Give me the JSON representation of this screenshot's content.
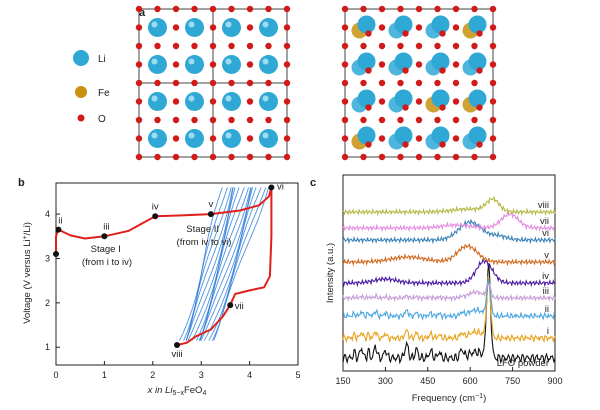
{
  "figure": {
    "panel_a_label": "a",
    "panel_b_label": "b",
    "panel_c_label": "c",
    "legend": [
      {
        "label": "Li",
        "color": "#2fa8d6"
      },
      {
        "label": "Fe",
        "color": "#c8920e"
      },
      {
        "label": "O",
        "color": "#d11a1a"
      }
    ]
  },
  "chart_data": [
    {
      "type": "line",
      "panel": "b",
      "xlabel_parts": [
        "x in Li",
        "5−x",
        "FeO",
        "4"
      ],
      "ylabel_parts": [
        "Voltage (V versus Li",
        "+",
        "/Li)"
      ],
      "xlim": [
        0,
        5
      ],
      "ylim": [
        0.6,
        4.7
      ],
      "x_ticks": [
        "0",
        "1",
        "2",
        "3",
        "4",
        "5"
      ],
      "y_ticks": [
        "1",
        "2",
        "3",
        "4"
      ],
      "points": [
        {
          "label": "i",
          "x": 0.0,
          "y": 3.1
        },
        {
          "label": "ii",
          "x": 0.05,
          "y": 3.65
        },
        {
          "label": "iii",
          "x": 1.0,
          "y": 3.5
        },
        {
          "label": "iv",
          "x": 2.05,
          "y": 3.95
        },
        {
          "label": "v",
          "x": 3.2,
          "y": 4.0
        },
        {
          "label": "vi",
          "x": 4.45,
          "y": 4.6
        },
        {
          "label": "vii",
          "x": 3.6,
          "y": 1.95
        },
        {
          "label": "viii",
          "x": 2.5,
          "y": 1.05
        }
      ],
      "annotations": [
        {
          "lines": [
            "Stage I",
            "(from i to iv)"
          ]
        },
        {
          "lines": [
            "Stage II",
            "(from iv to vi)"
          ]
        }
      ],
      "series": [
        {
          "color": "#e0201c",
          "x": [
            0.0,
            0.0,
            0.05,
            0.3,
            0.6,
            1.0,
            1.5,
            2.05,
            2.6,
            3.2,
            3.8,
            4.2,
            4.4,
            4.45,
            4.45,
            4.42,
            4.3,
            4.0,
            3.7,
            3.6,
            3.45,
            3.2,
            2.9,
            2.7,
            2.5
          ],
          "y": [
            3.1,
            3.5,
            3.65,
            3.52,
            3.45,
            3.5,
            3.62,
            3.95,
            3.97,
            4.0,
            4.08,
            4.2,
            4.4,
            4.6,
            3.5,
            2.6,
            2.35,
            2.28,
            2.2,
            1.95,
            1.7,
            1.4,
            1.25,
            1.1,
            1.05
          ]
        }
      ],
      "cycling_color": "#2f7fd8"
    },
    {
      "type": "line",
      "panel": "c",
      "xlabel_parts": [
        "Frequency (cm",
        "−1",
        ")"
      ],
      "ylabel": "Intensity (a.u.)",
      "xlim": [
        150,
        900
      ],
      "x_ticks": [
        "150",
        "300",
        "450",
        "600",
        "750",
        "900"
      ],
      "series": [
        {
          "name": "LFO powder",
          "color": "#111111"
        },
        {
          "name": "i",
          "color": "#e8a21a"
        },
        {
          "name": "ii",
          "color": "#4aa6e0"
        },
        {
          "name": "iii",
          "color": "#c79cd8"
        },
        {
          "name": "iv",
          "color": "#4a1aa0"
        },
        {
          "name": "v",
          "color": "#d2691e"
        },
        {
          "name": "vi",
          "color": "#3b84b8"
        },
        {
          "name": "vii",
          "color": "#e48ce0"
        },
        {
          "name": "viii",
          "color": "#b6b845"
        }
      ]
    }
  ]
}
